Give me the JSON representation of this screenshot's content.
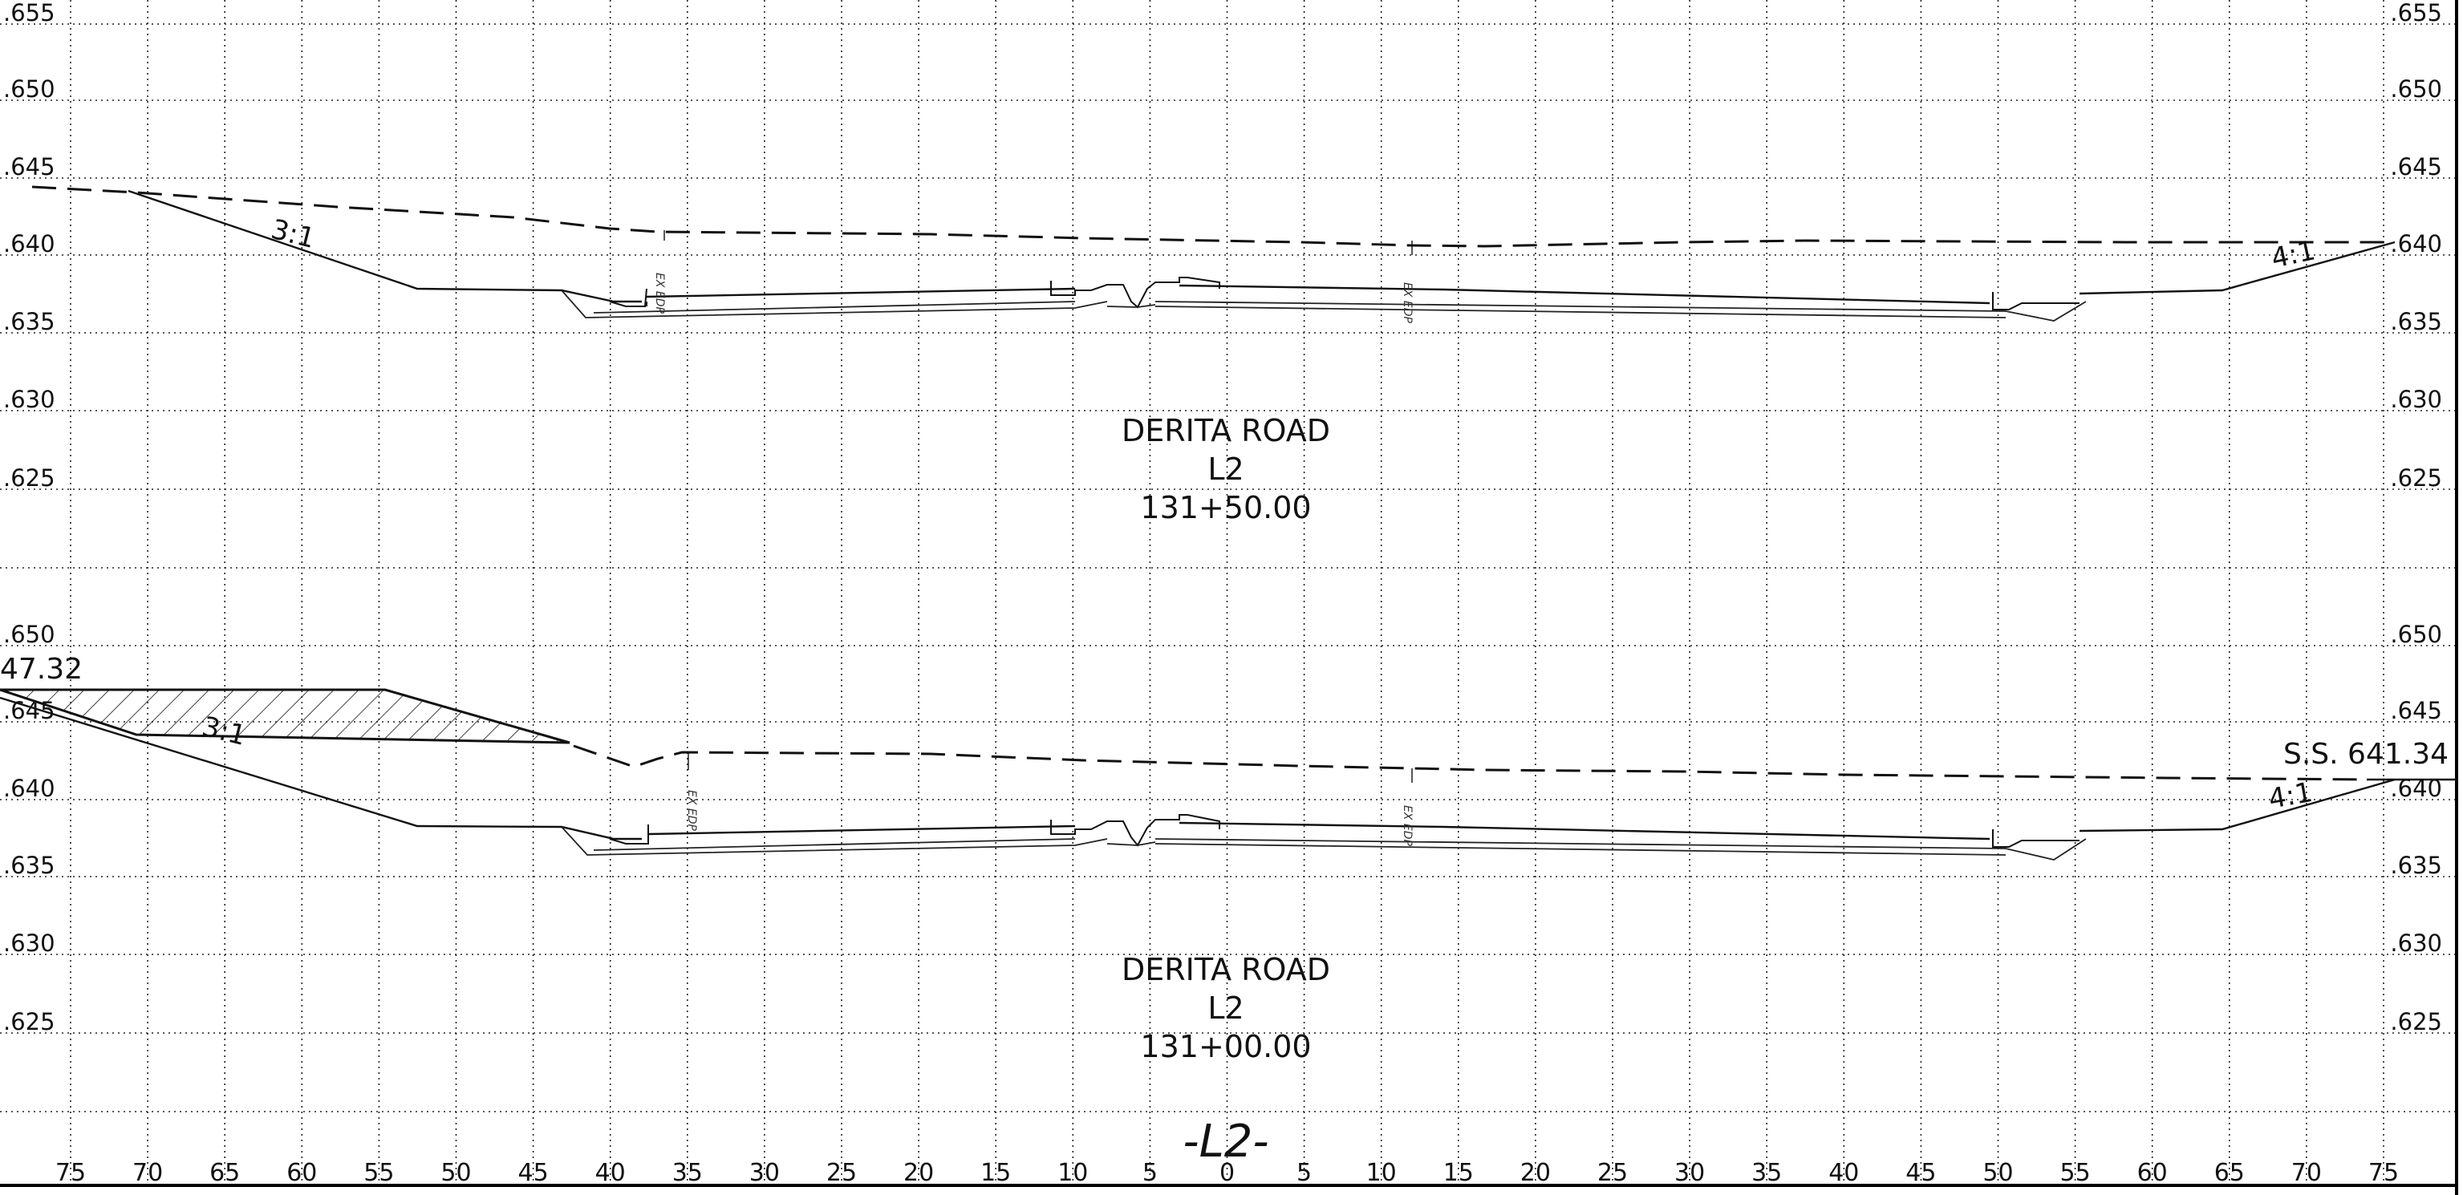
{
  "drawing": {
    "alignment_label": "-L2-",
    "offsets": [
      "75",
      "70",
      "65",
      "60",
      "55",
      "50",
      "45",
      "40",
      "35",
      "30",
      "25",
      "20",
      "15",
      "10",
      "5",
      "0",
      "5",
      "10",
      "15",
      "20",
      "25",
      "30",
      "35",
      "40",
      "45",
      "50",
      "55",
      "60",
      "65",
      "70",
      "75"
    ],
    "upper_section": {
      "road": "DERITA ROAD",
      "line": "L2",
      "station": "131+50.00",
      "elev_labels_left": [
        ".655",
        ".650",
        ".645",
        ".640",
        ".635",
        ".630",
        ".625"
      ],
      "elev_labels_right": [
        ".655",
        ".650",
        ".645",
        ".640",
        ".635",
        ".630",
        ".625"
      ],
      "slope_left": "3:1",
      "slope_right": "4:1",
      "edp_left": "EX EDP",
      "edp_right": "EX EDP"
    },
    "lower_section": {
      "road": "DERITA ROAD",
      "line": "L2",
      "station": "131+00.00",
      "elev_labels_left": [
        ".650",
        ".645",
        ".640",
        ".635",
        ".630",
        ".625"
      ],
      "elev_labels_right": [
        ".650",
        ".645",
        ".640",
        ".635",
        ".630",
        ".625"
      ],
      "slope_left": "3:1",
      "slope_right": "4:1",
      "edp_left": "EX EDP",
      "edp_right": "EX EDP",
      "left_annotation": "47.32",
      "right_annotation": "S.S. 641.34"
    },
    "colors": {
      "line": "#111111",
      "background": "#ffffff"
    }
  }
}
